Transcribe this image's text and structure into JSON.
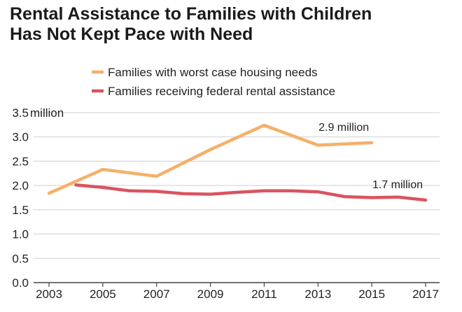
{
  "chart_data": {
    "type": "line",
    "title_lines": [
      "Rental Assistance to Families with Children",
      "Has Not Kept Pace with Need"
    ],
    "y_unit": "million",
    "ylim": [
      0,
      3.5
    ],
    "yticks": [
      "0.0",
      "0.5",
      "1.0",
      "1.5",
      "2.0",
      "2.5",
      "3.0",
      "3.5"
    ],
    "xlim": [
      2003,
      2017
    ],
    "xticks": [
      "2003",
      "2005",
      "2007",
      "2009",
      "2011",
      "2013",
      "2015",
      "2017"
    ],
    "grid": "horizontal",
    "legend": "top",
    "series": [
      {
        "name": "Families with worst case housing needs",
        "color": "#f5b06a",
        "points": [
          [
            2003,
            1.84
          ],
          [
            2005,
            2.33
          ],
          [
            2007,
            2.19
          ],
          [
            2009,
            2.74
          ],
          [
            2011,
            3.24
          ],
          [
            2013,
            2.83
          ],
          [
            2015,
            2.88
          ]
        ]
      },
      {
        "name": "Families receiving federal rental assistance",
        "color": "#d9545f",
        "points": [
          [
            2004,
            2.01
          ],
          [
            2005,
            1.96
          ],
          [
            2006,
            1.89
          ],
          [
            2007,
            1.88
          ],
          [
            2008,
            1.83
          ],
          [
            2009,
            1.82
          ],
          [
            2010,
            1.86
          ],
          [
            2011,
            1.89
          ],
          [
            2012,
            1.89
          ],
          [
            2013,
            1.87
          ],
          [
            2014,
            1.77
          ],
          [
            2015,
            1.75
          ],
          [
            2016,
            1.76
          ],
          [
            2017,
            1.7
          ]
        ]
      }
    ],
    "annotations": [
      {
        "text": "2.9 million",
        "x": 2015,
        "y": 2.88
      },
      {
        "text": "1.7 million",
        "x": 2017,
        "y": 1.7
      }
    ]
  }
}
